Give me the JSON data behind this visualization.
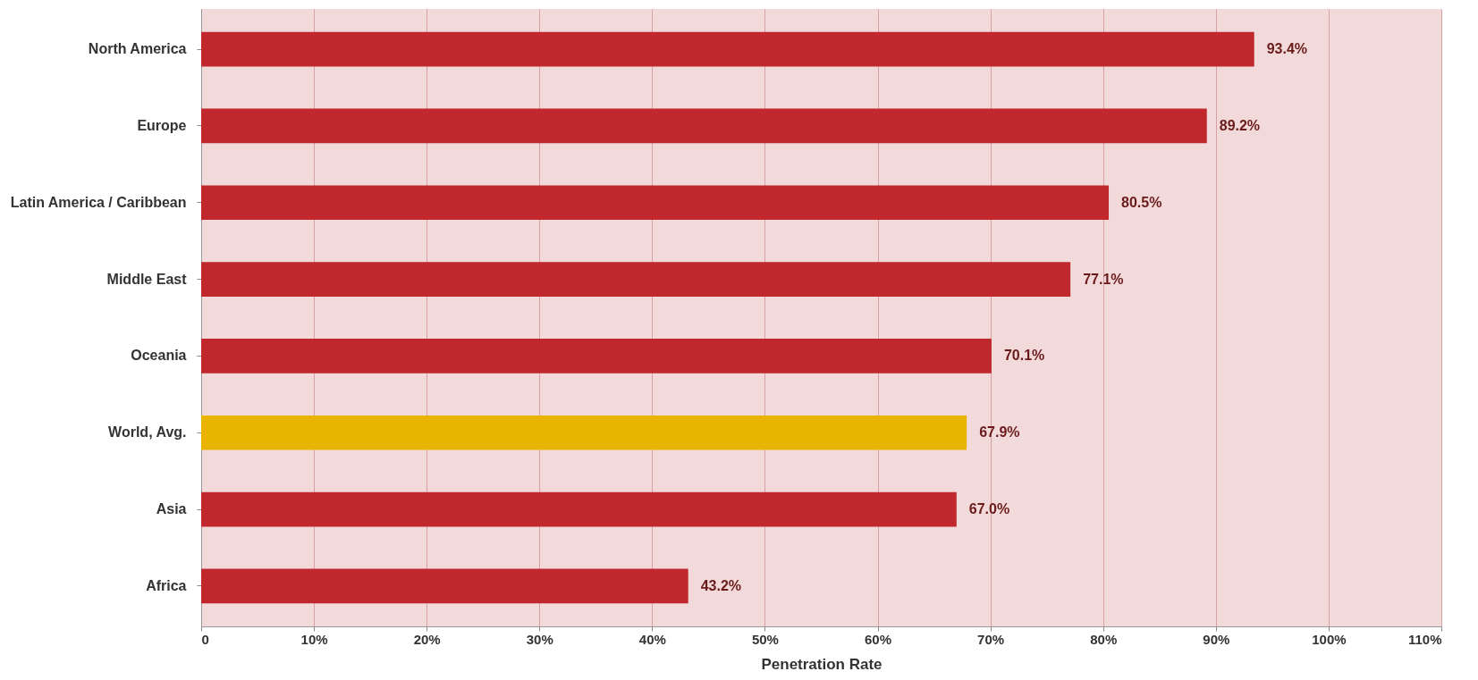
{
  "chart_data": {
    "type": "bar",
    "orientation": "horizontal",
    "xlabel": "Penetration Rate",
    "categories": [
      "North America",
      "Europe",
      "Latin America / Caribbean",
      "Middle East",
      "Oceania",
      "World, Avg.",
      "Asia",
      "Africa"
    ],
    "values": [
      93.4,
      89.2,
      80.5,
      77.1,
      70.1,
      67.9,
      67.0,
      43.2
    ],
    "colors": [
      "#c0282d",
      "#c0282d",
      "#c0282d",
      "#c0282d",
      "#c0282d",
      "#e8b400",
      "#c0282d",
      "#c0282d"
    ],
    "value_labels": [
      "93.4%",
      "89.2%",
      "80.5%",
      "77.1%",
      "70.1%",
      "67.9%",
      "67.0%",
      "43.2%"
    ],
    "xlim": [
      0,
      110
    ],
    "xticks": [
      0,
      {
        "value": 10,
        "label": "10%"
      },
      {
        "value": 20,
        "label": "20%"
      },
      {
        "value": 30,
        "label": "30%"
      },
      {
        "value": 40,
        "label": "40%"
      },
      {
        "value": 50,
        "label": "50%"
      },
      {
        "value": 60,
        "label": "60%"
      },
      {
        "value": 70,
        "label": "70%"
      },
      {
        "value": 80,
        "label": "80%"
      },
      {
        "value": 90,
        "label": "90%"
      },
      {
        "value": 100,
        "label": "100%"
      },
      {
        "value": 110,
        "label": "110%"
      }
    ],
    "grid": "x"
  }
}
